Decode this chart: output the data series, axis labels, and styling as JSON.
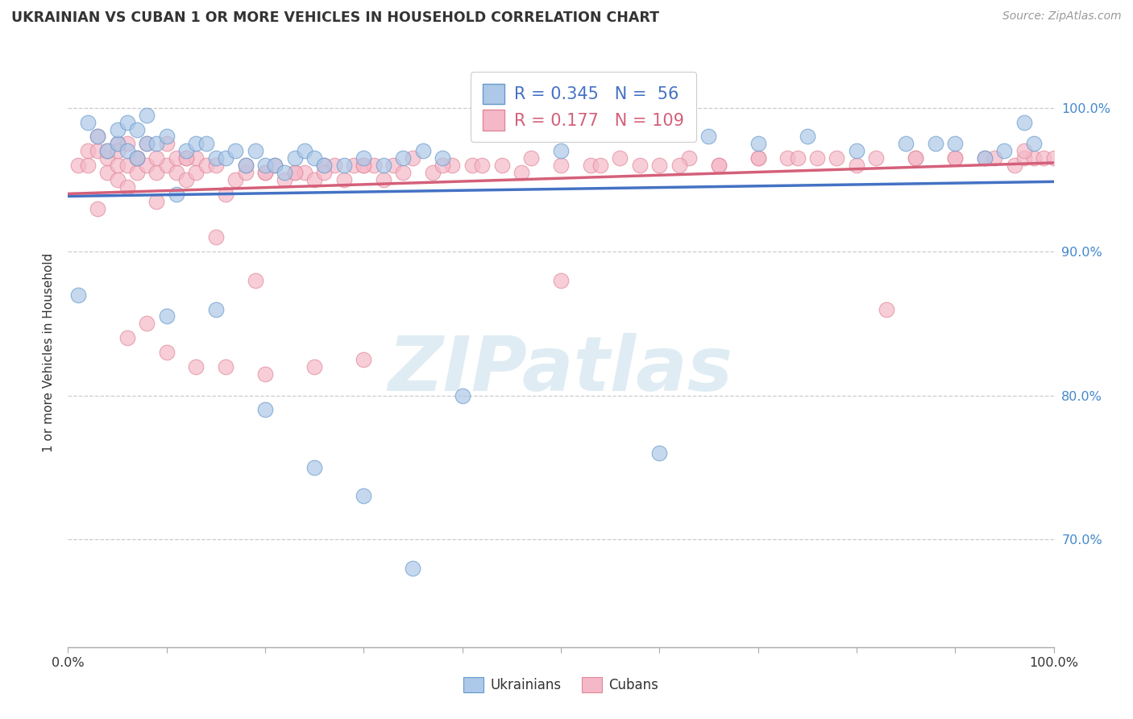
{
  "title": "UKRAINIAN VS CUBAN 1 OR MORE VEHICLES IN HOUSEHOLD CORRELATION CHART",
  "source": "Source: ZipAtlas.com",
  "ylabel": "1 or more Vehicles in Household",
  "xmin": 0.0,
  "xmax": 1.0,
  "ymin": 0.625,
  "ymax": 1.035,
  "yticks": [
    0.7,
    0.8,
    0.9,
    1.0
  ],
  "ytick_labels": [
    "70.0%",
    "80.0%",
    "90.0%",
    "100.0%"
  ],
  "watermark": "ZIPatlas",
  "blue_color": "#adc8e8",
  "blue_edge": "#6699cc",
  "pink_color": "#f5b8c8",
  "pink_edge": "#e08898",
  "blue_line_color": "#4472c4",
  "pink_line_color": "#d4607a",
  "blue_R": 0.345,
  "blue_N": 56,
  "pink_R": 0.177,
  "pink_N": 109,
  "legend_label_blue": "Ukrainians",
  "legend_label_pink": "Cubans",
  "blue_scatter_x": [
    0.01,
    0.02,
    0.03,
    0.04,
    0.05,
    0.05,
    0.06,
    0.06,
    0.07,
    0.07,
    0.08,
    0.08,
    0.09,
    0.1,
    0.11,
    0.12,
    0.13,
    0.14,
    0.15,
    0.16,
    0.17,
    0.18,
    0.19,
    0.2,
    0.21,
    0.22,
    0.23,
    0.24,
    0.25,
    0.26,
    0.28,
    0.3,
    0.32,
    0.34,
    0.36,
    0.38,
    0.4,
    0.5,
    0.6,
    0.65,
    0.7,
    0.75,
    0.8,
    0.85,
    0.88,
    0.9,
    0.93,
    0.95,
    0.97,
    0.98,
    0.1,
    0.15,
    0.2,
    0.25,
    0.3,
    0.35
  ],
  "blue_scatter_y": [
    0.87,
    0.99,
    0.98,
    0.97,
    0.975,
    0.985,
    0.97,
    0.99,
    0.985,
    0.965,
    0.975,
    0.995,
    0.975,
    0.98,
    0.94,
    0.97,
    0.975,
    0.975,
    0.965,
    0.965,
    0.97,
    0.96,
    0.97,
    0.96,
    0.96,
    0.955,
    0.965,
    0.97,
    0.965,
    0.96,
    0.96,
    0.965,
    0.96,
    0.965,
    0.97,
    0.965,
    0.8,
    0.97,
    0.76,
    0.98,
    0.975,
    0.98,
    0.97,
    0.975,
    0.975,
    0.975,
    0.965,
    0.97,
    0.99,
    0.975,
    0.855,
    0.86,
    0.79,
    0.75,
    0.73,
    0.68
  ],
  "pink_scatter_x": [
    0.01,
    0.02,
    0.02,
    0.03,
    0.03,
    0.04,
    0.04,
    0.04,
    0.05,
    0.05,
    0.05,
    0.06,
    0.06,
    0.06,
    0.07,
    0.07,
    0.08,
    0.08,
    0.09,
    0.09,
    0.1,
    0.1,
    0.11,
    0.11,
    0.12,
    0.12,
    0.13,
    0.13,
    0.14,
    0.15,
    0.16,
    0.17,
    0.18,
    0.19,
    0.2,
    0.21,
    0.22,
    0.23,
    0.24,
    0.25,
    0.26,
    0.27,
    0.28,
    0.29,
    0.3,
    0.31,
    0.32,
    0.33,
    0.35,
    0.37,
    0.39,
    0.41,
    0.44,
    0.47,
    0.5,
    0.53,
    0.56,
    0.6,
    0.63,
    0.66,
    0.7,
    0.73,
    0.76,
    0.8,
    0.83,
    0.86,
    0.9,
    0.93,
    0.96,
    0.97,
    0.98,
    0.99,
    1.0,
    0.05,
    0.07,
    0.09,
    0.12,
    0.15,
    0.18,
    0.2,
    0.23,
    0.26,
    0.3,
    0.34,
    0.38,
    0.42,
    0.46,
    0.5,
    0.54,
    0.58,
    0.62,
    0.66,
    0.7,
    0.74,
    0.78,
    0.82,
    0.86,
    0.9,
    0.94,
    0.97,
    0.03,
    0.06,
    0.08,
    0.1,
    0.13,
    0.16,
    0.2,
    0.25,
    0.3
  ],
  "pink_scatter_y": [
    0.96,
    0.96,
    0.97,
    0.97,
    0.98,
    0.955,
    0.965,
    0.97,
    0.95,
    0.96,
    0.975,
    0.945,
    0.96,
    0.975,
    0.955,
    0.965,
    0.96,
    0.975,
    0.935,
    0.955,
    0.96,
    0.975,
    0.955,
    0.965,
    0.95,
    0.965,
    0.955,
    0.965,
    0.96,
    0.91,
    0.94,
    0.95,
    0.955,
    0.88,
    0.955,
    0.96,
    0.95,
    0.955,
    0.955,
    0.95,
    0.96,
    0.96,
    0.95,
    0.96,
    0.96,
    0.96,
    0.95,
    0.96,
    0.965,
    0.955,
    0.96,
    0.96,
    0.96,
    0.965,
    0.88,
    0.96,
    0.965,
    0.96,
    0.965,
    0.96,
    0.965,
    0.965,
    0.965,
    0.96,
    0.86,
    0.965,
    0.965,
    0.965,
    0.96,
    0.965,
    0.965,
    0.965,
    0.965,
    0.97,
    0.965,
    0.965,
    0.965,
    0.96,
    0.96,
    0.955,
    0.955,
    0.955,
    0.96,
    0.955,
    0.96,
    0.96,
    0.955,
    0.96,
    0.96,
    0.96,
    0.96,
    0.96,
    0.965,
    0.965,
    0.965,
    0.965,
    0.965,
    0.965,
    0.965,
    0.97,
    0.93,
    0.84,
    0.85,
    0.83,
    0.82,
    0.82,
    0.815,
    0.82,
    0.825
  ]
}
